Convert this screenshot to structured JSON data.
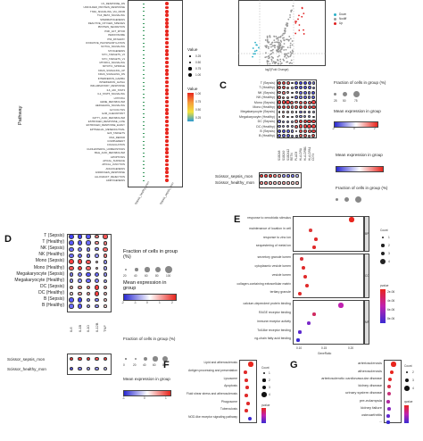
{
  "panels": {
    "A": {
      "ylabel": "Pathway",
      "pathways_top": [
        "UV_RESPONSE_DN",
        "UNFOLDED_PROTEIN_RESPONSE",
        "TNFA_SIGNALING_VIA_NFKB",
        "TGF_BETA_SIGNALING",
        "SPERMATOGENESIS",
        "REACTIVE_OXYGEN_SPECIES",
        "PROTEIN_SECRETION",
        "PI3K_AKT_MTOR",
        "PEROXISOME",
        "P53_PATHWAY",
        "OXIDATIVE_PHOSPHORYLATION",
        "NOTCH_SIGNALING",
        "MYOGENESIS",
        "MYC_TARGETS_V2",
        "MYC_TARGETS_V1",
        "MTORC1_SIGNALING",
        "MITOTIC_SPINDLE",
        "KRAS_SIGNALING_UP",
        "KRAS_SIGNALING_DN",
        "INTERFERON_GAMMA",
        "INTERFERON_ALPHA",
        "INFLAMMATORY_RESPONSE",
        "IL6_JAK_STAT3",
        "IL2_STAT5_SIGNALING",
        "HYPOXIA",
        "HEME_METABOLISM",
        "HEDGEHOG_SIGNALING",
        "GLYCOLYSIS",
        "G2M_CHECKPOINT",
        "FATTY_ACID_METABOLISM",
        "ESTROGEN_RESPONSE_LATE",
        "ESTROGEN_RESPONSE_EARLY",
        "EPITHELIAL_MESENCHYMAL",
        "E2F_TARGETS",
        "DNA_REPAIR",
        "COMPLEMENT",
        "COAGULATION",
        "CHOLESTEROL_HOMEOSTASIS",
        "BILE_ACID_METABOLISM",
        "APOPTOSIS",
        "APICAL_SURFACE",
        "APICAL_JUNCTION",
        "ANGIOGENESIS",
        "ANDROGEN_RESPONSE",
        "ALLOGRAFT_REJECTION",
        "ADIPOGENESIS"
      ],
      "xticks": [
        "Sepsis_healthy_mon",
        "Sepsis_sepsis_mon"
      ],
      "size_title": "Value",
      "size_legend": [
        "0.25",
        "0.50",
        "0.75",
        "1.00"
      ],
      "color_title": "Value",
      "color_ticks": [
        "1.00",
        "0.75",
        "0.50",
        "0.25"
      ]
    },
    "B": {
      "xlabel": "log2(Fold Change)",
      "legend": [
        "Down",
        "Nodiff",
        "Up"
      ],
      "colors": {
        "down": "#2ab0c8",
        "nodiff": "#9a9a9a",
        "up": "#e02020"
      }
    },
    "C": {
      "label": "C",
      "rows": [
        "T (Sepsis)",
        "T (Healthy)",
        "NK (Sepsis)",
        "NK (Healthy)",
        "Mono (Sepsis)",
        "Mono (Healthy)",
        "Megakaryocyte (Sepsis)",
        "Megakaryocyte (Healthy)",
        "DC (Sepsis)",
        "DC (Healthy)",
        "B (Sepsis)",
        "B (Healthy)"
      ],
      "genes": [
        "S100A8",
        "S100A9",
        "S100A12",
        "RETN",
        "PLAC8",
        "HLA-DRA",
        "HLA-DRB1",
        "HLA-DPA1",
        "CD74"
      ],
      "frac_title": "Fraction of cells in group (%)",
      "frac_ticks": [
        "25",
        "50",
        "75"
      ],
      "mean_title": "Mean expression in group",
      "mean_ticks": [
        "-2",
        "0",
        "2"
      ],
      "lower_rows": [
        "Scissor_sepsis_mon",
        "Scissor_healthy_mon"
      ],
      "lower_mean_title": "Mean expression in group",
      "lower_frac_title": "Fraction of cells in group (%)"
    },
    "D": {
      "label": "D",
      "rows": [
        "T (Sepsis)",
        "T (Healthy)",
        "NK (Sepsis)",
        "NK (Healthy)",
        "Mono (Sepsis)",
        "Mono (Healthy)",
        "Megakaryocyte (Sepsis)",
        "Megakaryocyte (Healthy)",
        "DC (Sepsis)",
        "DC (Healthy)",
        "B (Sepsis)",
        "B (Healthy)"
      ],
      "genes": [
        "IL6",
        "IL1B",
        "IL10",
        "IL12B",
        "TNF"
      ],
      "frac_title": "Fraction of cells in group (%)",
      "frac_ticks": [
        "20",
        "40",
        "60",
        "80",
        "100"
      ],
      "mean_title": "Mean expression in group",
      "mean_ticks": [
        "-2",
        "-1",
        "0",
        "1",
        "2"
      ],
      "lower_rows": [
        "Scissor_sepsis_mon",
        "Scissor_healthy_mon"
      ],
      "lower_frac_title": "Fraction of cells in group (%)",
      "lower_frac_ticks": [
        "0",
        "20",
        "40",
        "60",
        "80"
      ],
      "lower_mean_title": "Mean expression in group",
      "lower_mean_ticks": [
        "-1",
        "0",
        "1"
      ]
    },
    "E": {
      "label": "E",
      "terms": [
        "response to xenobiotic stimulus",
        "maintenance of location in cell",
        "response to zinc ion",
        "sequestering of metal ion",
        "secretory granule lumen",
        "cytoplasmic vesicle lumen",
        "vesicle lumen",
        "collagen-containing extracellular matrix",
        "tertiary granule",
        "calcium-dependent protein binding",
        "RAGE receptor binding",
        "immune receptor activity",
        "Toll-like receptor binding",
        "ng-chain fatty acid binding"
      ],
      "facets": [
        "BP",
        "CC",
        "MF"
      ],
      "xlabel": "GeneRatio",
      "xticks": [
        "0.10",
        "0.15",
        "0.20"
      ],
      "count_title": "Count",
      "count_ticks": [
        "1",
        "2",
        "3",
        "4"
      ],
      "p_title": "pvalue",
      "p_ticks": [
        "2e-06",
        "4e-06",
        "6e-06",
        "8e-06"
      ]
    },
    "F": {
      "label": "F",
      "terms": [
        "Lipid and atherosclerosis",
        "Antigen processing and presentation",
        "Lysosome",
        "Apoptosis",
        "Fluid shear stress and atherosclerosis",
        "Phagosome",
        "Tuberculosis",
        "NOD-like receptor signaling pathway"
      ],
      "count_title": "Count",
      "count_ticks": [
        "1",
        "2",
        "3",
        "4"
      ],
      "p_title": "pvalue"
    },
    "G": {
      "label": "G",
      "terms": [
        "arteriosclerosis",
        "atherosclerosis",
        "arteriosclerotic cardiovascular disease",
        "kidney disease",
        "urinary system disease",
        "pre-eclampsia",
        "kidney failure",
        "osteoarthritis",
        "..."
      ],
      "count_title": "Count",
      "count_ticks": [
        "2",
        "3",
        "4"
      ],
      "p_title": "qvalue"
    }
  }
}
